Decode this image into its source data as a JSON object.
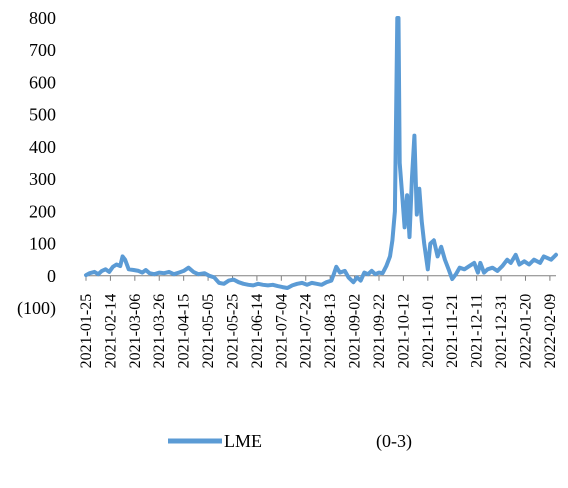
{
  "chart_data": {
    "type": "line",
    "title": "",
    "xlabel": "",
    "ylabel": "",
    "ylim": [
      -100,
      800
    ],
    "y_ticks": [
      {
        "value": 800,
        "label": "800"
      },
      {
        "value": 700,
        "label": "700"
      },
      {
        "value": 600,
        "label": "600"
      },
      {
        "value": 500,
        "label": "500"
      },
      {
        "value": 400,
        "label": "400"
      },
      {
        "value": 300,
        "label": "300"
      },
      {
        "value": 200,
        "label": "200"
      },
      {
        "value": 100,
        "label": "100"
      },
      {
        "value": 0,
        "label": "0"
      },
      {
        "value": -100,
        "label": "(100)",
        "color": "#cc0000"
      }
    ],
    "x_tick_labels": [
      "2021-01-25",
      "2021-02-14",
      "2021-03-06",
      "2021-03-26",
      "2021-04-15",
      "2021-05-05",
      "2021-05-25",
      "2021-06-14",
      "2021-07-04",
      "2021-07-24",
      "2021-08-13",
      "2021-09-02",
      "2021-09-22",
      "2021-10-12",
      "2021-11-01",
      "2021-11-21",
      "2021-12-11",
      "2021-12-31",
      "2022-01-20",
      "2022-02-09"
    ],
    "x_start": "2021-01-25",
    "x_end": "2022-02-14",
    "legend": {
      "placement": "bottom",
      "extra_text": "(0-3)"
    },
    "series": [
      {
        "name": "LME",
        "color": "#5b9bd5",
        "points": [
          [
            "2021-01-25",
            2
          ],
          [
            "2021-01-28",
            8
          ],
          [
            "2021-02-01",
            12
          ],
          [
            "2021-02-04",
            5
          ],
          [
            "2021-02-07",
            15
          ],
          [
            "2021-02-10",
            20
          ],
          [
            "2021-02-13",
            12
          ],
          [
            "2021-02-16",
            28
          ],
          [
            "2021-02-19",
            35
          ],
          [
            "2021-02-22",
            30
          ],
          [
            "2021-02-24",
            60
          ],
          [
            "2021-02-26",
            50
          ],
          [
            "2021-03-01",
            20
          ],
          [
            "2021-03-05",
            18
          ],
          [
            "2021-03-09",
            15
          ],
          [
            "2021-03-12",
            10
          ],
          [
            "2021-03-15",
            18
          ],
          [
            "2021-03-18",
            8
          ],
          [
            "2021-03-22",
            5
          ],
          [
            "2021-03-26",
            10
          ],
          [
            "2021-03-30",
            8
          ],
          [
            "2021-04-03",
            12
          ],
          [
            "2021-04-07",
            5
          ],
          [
            "2021-04-11",
            10
          ],
          [
            "2021-04-15",
            15
          ],
          [
            "2021-04-19",
            25
          ],
          [
            "2021-04-23",
            12
          ],
          [
            "2021-04-27",
            5
          ],
          [
            "2021-05-02",
            8
          ],
          [
            "2021-05-06",
            0
          ],
          [
            "2021-05-10",
            -5
          ],
          [
            "2021-05-14",
            -22
          ],
          [
            "2021-05-18",
            -25
          ],
          [
            "2021-05-22",
            -15
          ],
          [
            "2021-05-26",
            -12
          ],
          [
            "2021-05-30",
            -20
          ],
          [
            "2021-06-03",
            -25
          ],
          [
            "2021-06-07",
            -28
          ],
          [
            "2021-06-11",
            -30
          ],
          [
            "2021-06-15",
            -25
          ],
          [
            "2021-06-19",
            -28
          ],
          [
            "2021-06-23",
            -30
          ],
          [
            "2021-06-27",
            -28
          ],
          [
            "2021-07-01",
            -32
          ],
          [
            "2021-07-05",
            -35
          ],
          [
            "2021-07-09",
            -38
          ],
          [
            "2021-07-13",
            -30
          ],
          [
            "2021-07-17",
            -25
          ],
          [
            "2021-07-21",
            -22
          ],
          [
            "2021-07-25",
            -28
          ],
          [
            "2021-07-29",
            -22
          ],
          [
            "2021-08-02",
            -25
          ],
          [
            "2021-08-06",
            -28
          ],
          [
            "2021-08-10",
            -20
          ],
          [
            "2021-08-14",
            -15
          ],
          [
            "2021-08-16",
            5
          ],
          [
            "2021-08-18",
            28
          ],
          [
            "2021-08-21",
            10
          ],
          [
            "2021-08-25",
            15
          ],
          [
            "2021-08-28",
            -5
          ],
          [
            "2021-09-01",
            -20
          ],
          [
            "2021-09-04",
            -5
          ],
          [
            "2021-09-07",
            -15
          ],
          [
            "2021-09-10",
            10
          ],
          [
            "2021-09-13",
            5
          ],
          [
            "2021-09-16",
            15
          ],
          [
            "2021-09-19",
            5
          ],
          [
            "2021-09-22",
            10
          ],
          [
            "2021-09-25",
            8
          ],
          [
            "2021-09-28",
            30
          ],
          [
            "2021-10-01",
            60
          ],
          [
            "2021-10-03",
            110
          ],
          [
            "2021-10-05",
            200
          ],
          [
            "2021-10-07",
            800
          ],
          [
            "2021-10-08",
            800
          ],
          [
            "2021-10-09",
            350
          ],
          [
            "2021-10-11",
            250
          ],
          [
            "2021-10-13",
            150
          ],
          [
            "2021-10-15",
            250
          ],
          [
            "2021-10-17",
            120
          ],
          [
            "2021-10-19",
            300
          ],
          [
            "2021-10-21",
            435
          ],
          [
            "2021-10-23",
            190
          ],
          [
            "2021-10-25",
            270
          ],
          [
            "2021-10-27",
            170
          ],
          [
            "2021-10-29",
            100
          ],
          [
            "2021-11-01",
            20
          ],
          [
            "2021-11-03",
            100
          ],
          [
            "2021-11-06",
            110
          ],
          [
            "2021-11-09",
            60
          ],
          [
            "2021-11-12",
            90
          ],
          [
            "2021-11-15",
            50
          ],
          [
            "2021-11-18",
            20
          ],
          [
            "2021-11-21",
            -10
          ],
          [
            "2021-11-24",
            5
          ],
          [
            "2021-11-27",
            25
          ],
          [
            "2021-12-01",
            20
          ],
          [
            "2021-12-05",
            30
          ],
          [
            "2021-12-09",
            40
          ],
          [
            "2021-12-12",
            10
          ],
          [
            "2021-12-14",
            40
          ],
          [
            "2021-12-17",
            10
          ],
          [
            "2021-12-20",
            20
          ],
          [
            "2021-12-24",
            25
          ],
          [
            "2021-12-28",
            15
          ],
          [
            "2022-01-01",
            30
          ],
          [
            "2022-01-05",
            50
          ],
          [
            "2022-01-08",
            40
          ],
          [
            "2022-01-12",
            65
          ],
          [
            "2022-01-15",
            35
          ],
          [
            "2022-01-19",
            45
          ],
          [
            "2022-01-23",
            35
          ],
          [
            "2022-01-27",
            50
          ],
          [
            "2022-02-01",
            40
          ],
          [
            "2022-02-04",
            60
          ],
          [
            "2022-02-07",
            55
          ],
          [
            "2022-02-10",
            50
          ],
          [
            "2022-02-14",
            65
          ]
        ]
      }
    ]
  }
}
